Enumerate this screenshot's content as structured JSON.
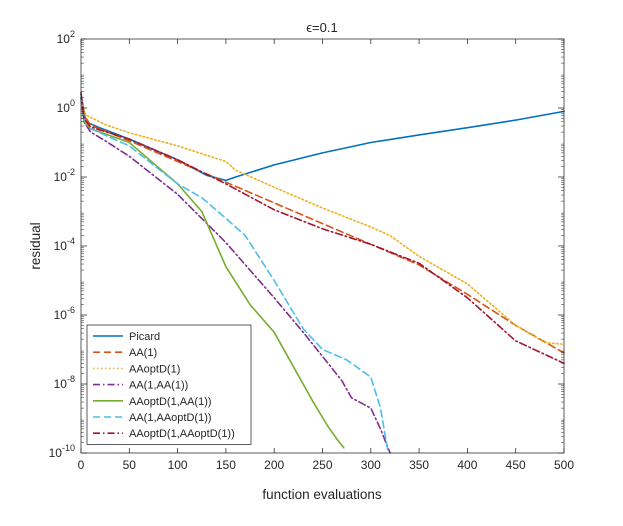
{
  "chart_data": {
    "type": "line",
    "title": "ϵ=0.1",
    "xlabel": "function evaluations",
    "ylabel": "residual",
    "xlim": [
      0,
      500
    ],
    "ylim_log10": [
      -10,
      2
    ],
    "y_scale": "log",
    "x_ticks": [
      0,
      50,
      100,
      150,
      200,
      250,
      300,
      350,
      400,
      450,
      500
    ],
    "x_tick_labels": [
      "0",
      "50",
      "100",
      "150",
      "200",
      "250",
      "300",
      "350",
      "400",
      "450",
      "500"
    ],
    "y_ticks_log10": [
      -10,
      -8,
      -6,
      -4,
      -2,
      0,
      2
    ],
    "y_tick_labels": [
      {
        "base": "10",
        "exp": "-10"
      },
      {
        "base": "10",
        "exp": "-8"
      },
      {
        "base": "10",
        "exp": "-6"
      },
      {
        "base": "10",
        "exp": "-4"
      },
      {
        "base": "10",
        "exp": "-2"
      },
      {
        "base": "10",
        "exp": "0"
      },
      {
        "base": "10",
        "exp": "2"
      }
    ],
    "grid": false,
    "legend_position": "bottom-left",
    "series": [
      {
        "name": "Picard",
        "color": "#0072BD",
        "dash": "solid",
        "x": [
          0,
          5,
          20,
          50,
          100,
          130,
          150,
          160,
          200,
          250,
          300,
          350,
          400,
          450,
          500
        ],
        "log10y": [
          0.4,
          -0.4,
          -0.58,
          -0.9,
          -1.5,
          -1.95,
          -2.1,
          -2.0,
          -1.65,
          -1.3,
          -1.0,
          -0.78,
          -0.57,
          -0.35,
          -0.1
        ]
      },
      {
        "name": "AA(1)",
        "color": "#D95319",
        "dash": "dashed",
        "x": [
          0,
          3,
          10,
          50,
          100,
          150,
          200,
          250,
          300,
          350,
          400,
          450,
          500
        ],
        "log10y": [
          0.3,
          -0.2,
          -0.5,
          -0.95,
          -1.55,
          -2.15,
          -2.75,
          -3.35,
          -3.95,
          -4.55,
          -5.4,
          -6.3,
          -7.1
        ]
      },
      {
        "name": "AAoptD(1)",
        "color": "#EDB120",
        "dash": "dotted",
        "x": [
          0,
          5,
          25,
          50,
          100,
          150,
          160,
          200,
          250,
          300,
          320,
          350,
          400,
          450,
          480,
          500
        ],
        "log10y": [
          0.2,
          -0.2,
          -0.48,
          -0.72,
          -1.1,
          -1.55,
          -1.8,
          -2.3,
          -2.9,
          -3.45,
          -3.7,
          -4.3,
          -5.1,
          -6.3,
          -6.8,
          -6.85
        ]
      },
      {
        "name": "AA(1,AA(1))",
        "color": "#7E2F8E",
        "dash": "dashdot",
        "x": [
          0,
          3,
          10,
          25,
          50,
          75,
          100,
          150,
          200,
          230,
          250,
          270,
          280,
          300,
          310,
          320
        ],
        "log10y": [
          0.3,
          -0.4,
          -0.7,
          -0.95,
          -1.4,
          -1.95,
          -2.5,
          -3.9,
          -5.5,
          -6.5,
          -7.2,
          -7.9,
          -8.4,
          -8.7,
          -9.3,
          -10.0
        ]
      },
      {
        "name": "AAoptD(1,AA(1))",
        "color": "#77AC30",
        "dash": "solid",
        "x": [
          0,
          3,
          10,
          25,
          50,
          75,
          100,
          125,
          150,
          175,
          200,
          220,
          240,
          255,
          265,
          272
        ],
        "log10y": [
          0.3,
          -0.4,
          -0.6,
          -0.75,
          -1.0,
          -1.6,
          -2.2,
          -3.0,
          -4.6,
          -5.7,
          -6.5,
          -7.5,
          -8.5,
          -9.2,
          -9.6,
          -9.85
        ]
      },
      {
        "name": "AA(1,AAoptD(1))",
        "color": "#4DBEEB",
        "dash": "dashed",
        "x": [
          0,
          3,
          10,
          50,
          75,
          100,
          125,
          150,
          170,
          200,
          230,
          250,
          275,
          300,
          310,
          318
        ],
        "log10y": [
          0.3,
          -0.3,
          -0.6,
          -1.1,
          -1.65,
          -2.2,
          -2.6,
          -3.2,
          -3.7,
          -5.0,
          -6.4,
          -7.0,
          -7.3,
          -7.8,
          -8.7,
          -10.0
        ]
      },
      {
        "name": "AAoptD(1,AAoptD(1))",
        "color": "#A2142F",
        "dash": "dashdot",
        "x": [
          0,
          3,
          10,
          50,
          100,
          150,
          200,
          250,
          300,
          350,
          400,
          450,
          500
        ],
        "log10y": [
          0.45,
          -0.3,
          -0.55,
          -0.9,
          -1.5,
          -2.2,
          -2.95,
          -3.5,
          -3.95,
          -4.5,
          -5.5,
          -6.75,
          -7.4
        ]
      }
    ]
  }
}
